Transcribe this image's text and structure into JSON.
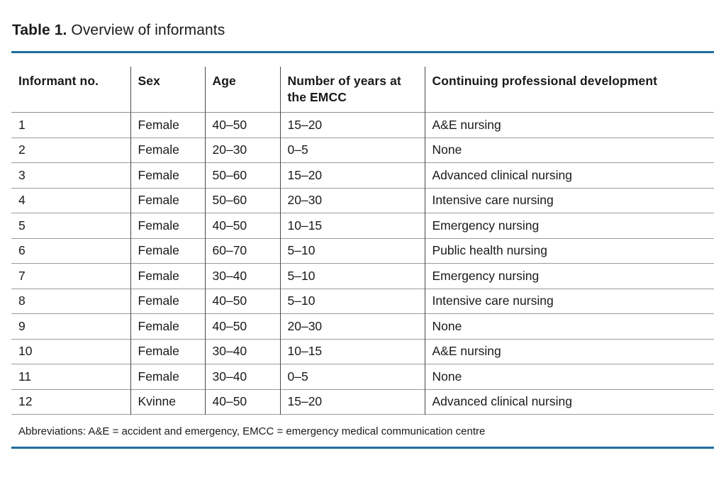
{
  "caption": {
    "label": "Table 1.",
    "text": "Overview of informants"
  },
  "accent_color": "#1f6d9d",
  "table": {
    "columns": [
      "Informant no.",
      "Sex",
      "Age",
      "Number of years at the EMCC",
      "Continuing professional development"
    ],
    "rows": [
      [
        "1",
        "Female",
        "40–50",
        "15–20",
        "A&E nursing"
      ],
      [
        "2",
        "Female",
        "20–30",
        "0–5",
        "None"
      ],
      [
        "3",
        "Female",
        "50–60",
        "15–20",
        "Advanced clinical nursing"
      ],
      [
        "4",
        "Female",
        "50–60",
        "20–30",
        "Intensive care nursing"
      ],
      [
        "5",
        "Female",
        "40–50",
        "10–15",
        "Emergency nursing"
      ],
      [
        "6",
        "Female",
        "60–70",
        "5–10",
        "Public health nursing"
      ],
      [
        "7",
        "Female",
        "30–40",
        "5–10",
        "Emergency nursing"
      ],
      [
        "8",
        "Female",
        "40–50",
        "5–10",
        "Intensive care nursing"
      ],
      [
        "9",
        "Female",
        "40–50",
        "20–30",
        "None"
      ],
      [
        "10",
        "Female",
        "30–40",
        "10–15",
        "A&E nursing"
      ],
      [
        "11",
        "Female",
        "30–40",
        "0–5",
        "None"
      ],
      [
        "12",
        "Kvinne",
        "40–50",
        "15–20",
        "Advanced clinical nursing"
      ]
    ],
    "footnote": "Abbreviations: A&E = accident and emergency, EMCC = emergency medical communication centre"
  }
}
